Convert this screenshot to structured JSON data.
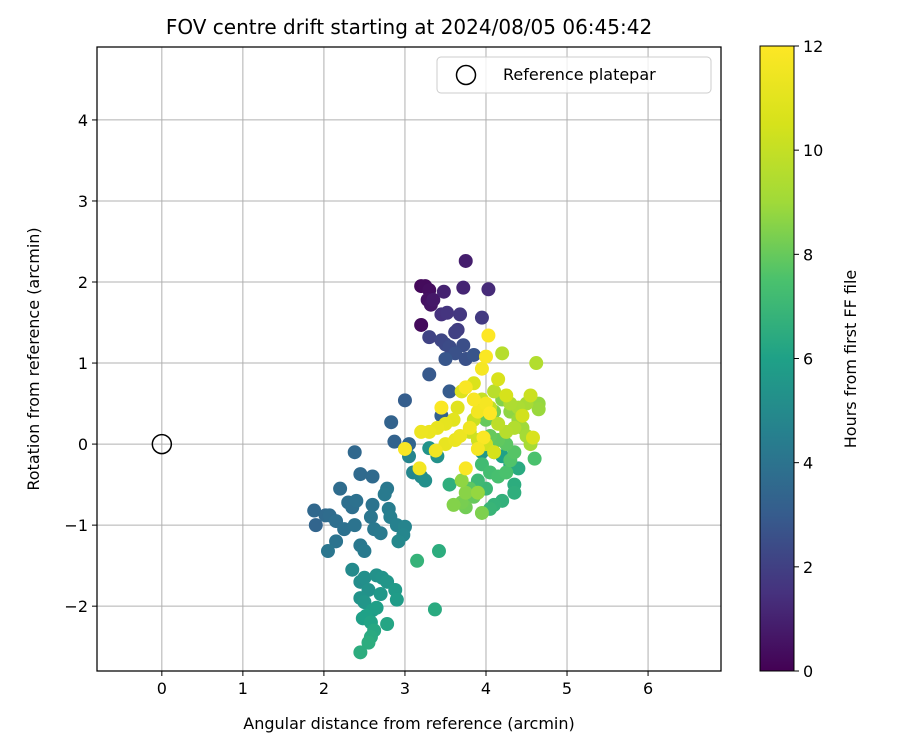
{
  "chart_data": {
    "type": "scatter",
    "title": "FOV centre drift starting at 2024/08/05 06:45:42",
    "xlabel": "Angular distance from reference (arcmin)",
    "ylabel": "Rotation from reference (arcmin)",
    "xlim": [
      -0.8,
      6.9
    ],
    "ylim": [
      -2.8,
      4.9
    ],
    "xticks": [
      0,
      1,
      2,
      3,
      4,
      5,
      6
    ],
    "yticks": [
      -2,
      -1,
      0,
      1,
      2,
      3,
      4
    ],
    "x_tick_labels": [
      "0",
      "1",
      "2",
      "3",
      "4",
      "5",
      "6"
    ],
    "y_tick_labels": [
      "−2",
      "−1",
      "0",
      "1",
      "2",
      "3",
      "4"
    ],
    "grid": true,
    "legend": {
      "placement": "top-right",
      "entries": [
        "Reference platepar"
      ]
    },
    "colorbar": {
      "label": "Hours from first FF file",
      "range": [
        0,
        12
      ],
      "ticks": [
        0,
        2,
        4,
        6,
        8,
        10,
        12
      ],
      "tick_labels": [
        "0",
        "2",
        "4",
        "6",
        "8",
        "10",
        "12"
      ],
      "colormap": "viridis"
    },
    "reference_point": {
      "x": 0,
      "y": 0
    },
    "points": [
      {
        "x": 3.2,
        "y": 1.95,
        "h": 0.2
      },
      {
        "x": 3.25,
        "y": 1.95,
        "h": 0.3
      },
      {
        "x": 3.3,
        "y": 1.9,
        "h": 0.4
      },
      {
        "x": 3.28,
        "y": 1.78,
        "h": 0.5
      },
      {
        "x": 3.32,
        "y": 1.72,
        "h": 0.6
      },
      {
        "x": 3.35,
        "y": 1.78,
        "h": 0.7
      },
      {
        "x": 3.2,
        "y": 1.47,
        "h": 0.3
      },
      {
        "x": 3.75,
        "y": 2.26,
        "h": 0.9
      },
      {
        "x": 3.48,
        "y": 1.88,
        "h": 1.0
      },
      {
        "x": 3.72,
        "y": 1.93,
        "h": 1.1
      },
      {
        "x": 4.03,
        "y": 1.91,
        "h": 1.3
      },
      {
        "x": 3.45,
        "y": 1.6,
        "h": 1.5
      },
      {
        "x": 3.52,
        "y": 1.62,
        "h": 1.6
      },
      {
        "x": 3.68,
        "y": 1.6,
        "h": 1.7
      },
      {
        "x": 3.95,
        "y": 1.56,
        "h": 1.8
      },
      {
        "x": 3.65,
        "y": 1.41,
        "h": 1.9
      },
      {
        "x": 3.62,
        "y": 1.38,
        "h": 2.0
      },
      {
        "x": 3.3,
        "y": 1.32,
        "h": 2.1
      },
      {
        "x": 3.45,
        "y": 1.28,
        "h": 2.2
      },
      {
        "x": 3.5,
        "y": 1.23,
        "h": 2.3
      },
      {
        "x": 3.55,
        "y": 1.2,
        "h": 2.4
      },
      {
        "x": 3.72,
        "y": 1.22,
        "h": 2.5
      },
      {
        "x": 3.62,
        "y": 1.12,
        "h": 2.6
      },
      {
        "x": 3.75,
        "y": 1.05,
        "h": 2.6
      },
      {
        "x": 3.85,
        "y": 1.1,
        "h": 2.7
      },
      {
        "x": 3.5,
        "y": 1.05,
        "h": 2.8
      },
      {
        "x": 3.3,
        "y": 0.86,
        "h": 2.9
      },
      {
        "x": 3.55,
        "y": 0.65,
        "h": 3.0
      },
      {
        "x": 3.0,
        "y": 0.54,
        "h": 3.1
      },
      {
        "x": 3.45,
        "y": 0.35,
        "h": 3.2
      },
      {
        "x": 2.83,
        "y": 0.27,
        "h": 3.3
      },
      {
        "x": 2.87,
        "y": 0.03,
        "h": 3.3
      },
      {
        "x": 3.05,
        "y": 0.0,
        "h": 3.4
      },
      {
        "x": 2.38,
        "y": -0.1,
        "h": 3.5
      },
      {
        "x": 2.45,
        "y": -0.37,
        "h": 3.6
      },
      {
        "x": 2.6,
        "y": -0.4,
        "h": 3.6
      },
      {
        "x": 1.88,
        "y": -0.82,
        "h": 3.5
      },
      {
        "x": 1.9,
        "y": -1.0,
        "h": 3.4
      },
      {
        "x": 2.02,
        "y": -0.88,
        "h": 3.6
      },
      {
        "x": 2.07,
        "y": -0.88,
        "h": 3.7
      },
      {
        "x": 2.2,
        "y": -0.55,
        "h": 3.7
      },
      {
        "x": 2.3,
        "y": -0.72,
        "h": 3.8
      },
      {
        "x": 2.35,
        "y": -0.78,
        "h": 3.8
      },
      {
        "x": 2.4,
        "y": -0.7,
        "h": 3.9
      },
      {
        "x": 2.15,
        "y": -0.95,
        "h": 3.8
      },
      {
        "x": 2.25,
        "y": -1.05,
        "h": 3.9
      },
      {
        "x": 2.15,
        "y": -1.2,
        "h": 4.0
      },
      {
        "x": 2.05,
        "y": -1.32,
        "h": 4.1
      },
      {
        "x": 2.38,
        "y": -1.0,
        "h": 4.0
      },
      {
        "x": 2.45,
        "y": -1.25,
        "h": 4.2
      },
      {
        "x": 2.5,
        "y": -1.32,
        "h": 4.3
      },
      {
        "x": 2.6,
        "y": -0.75,
        "h": 4.0
      },
      {
        "x": 2.58,
        "y": -0.9,
        "h": 4.1
      },
      {
        "x": 2.62,
        "y": -1.05,
        "h": 4.2
      },
      {
        "x": 2.7,
        "y": -1.1,
        "h": 4.3
      },
      {
        "x": 2.78,
        "y": -0.55,
        "h": 4.2
      },
      {
        "x": 2.75,
        "y": -0.62,
        "h": 4.3
      },
      {
        "x": 2.8,
        "y": -0.8,
        "h": 4.4
      },
      {
        "x": 2.82,
        "y": -0.9,
        "h": 4.5
      },
      {
        "x": 2.9,
        "y": -1.0,
        "h": 4.6
      },
      {
        "x": 3.0,
        "y": -1.02,
        "h": 4.7
      },
      {
        "x": 2.98,
        "y": -1.12,
        "h": 4.8
      },
      {
        "x": 2.92,
        "y": -1.2,
        "h": 4.9
      },
      {
        "x": 3.05,
        "y": -0.15,
        "h": 4.7
      },
      {
        "x": 3.1,
        "y": -0.35,
        "h": 4.8
      },
      {
        "x": 3.2,
        "y": -0.4,
        "h": 5.0
      },
      {
        "x": 3.25,
        "y": -0.45,
        "h": 5.2
      },
      {
        "x": 3.4,
        "y": -0.15,
        "h": 5.3
      },
      {
        "x": 3.3,
        "y": -0.05,
        "h": 5.4
      },
      {
        "x": 2.35,
        "y": -1.55,
        "h": 5.0
      },
      {
        "x": 2.45,
        "y": -1.7,
        "h": 5.1
      },
      {
        "x": 2.5,
        "y": -1.65,
        "h": 5.2
      },
      {
        "x": 2.55,
        "y": -1.8,
        "h": 5.3
      },
      {
        "x": 2.45,
        "y": -1.9,
        "h": 5.4
      },
      {
        "x": 2.5,
        "y": -1.95,
        "h": 5.5
      },
      {
        "x": 2.65,
        "y": -1.62,
        "h": 5.3
      },
      {
        "x": 2.72,
        "y": -1.65,
        "h": 5.4
      },
      {
        "x": 2.78,
        "y": -1.7,
        "h": 5.5
      },
      {
        "x": 2.7,
        "y": -1.85,
        "h": 5.6
      },
      {
        "x": 2.88,
        "y": -1.8,
        "h": 5.7
      },
      {
        "x": 2.9,
        "y": -1.92,
        "h": 5.8
      },
      {
        "x": 2.6,
        "y": -2.05,
        "h": 5.8
      },
      {
        "x": 2.65,
        "y": -2.02,
        "h": 5.9
      },
      {
        "x": 2.48,
        "y": -2.15,
        "h": 5.9
      },
      {
        "x": 2.52,
        "y": -2.12,
        "h": 6.0
      },
      {
        "x": 2.58,
        "y": -2.2,
        "h": 6.1
      },
      {
        "x": 2.78,
        "y": -2.22,
        "h": 6.2
      },
      {
        "x": 2.62,
        "y": -2.3,
        "h": 6.3
      },
      {
        "x": 2.58,
        "y": -2.38,
        "h": 6.4
      },
      {
        "x": 2.55,
        "y": -2.45,
        "h": 6.5
      },
      {
        "x": 2.45,
        "y": -2.57,
        "h": 6.5
      },
      {
        "x": 3.37,
        "y": -2.04,
        "h": 6.4
      },
      {
        "x": 3.42,
        "y": -1.32,
        "h": 6.5
      },
      {
        "x": 3.15,
        "y": -1.44,
        "h": 6.8
      },
      {
        "x": 3.55,
        "y": -0.5,
        "h": 6.6
      },
      {
        "x": 3.95,
        "y": -0.1,
        "h": 5.5
      },
      {
        "x": 4.0,
        "y": -0.05,
        "h": 5.6
      },
      {
        "x": 4.1,
        "y": -0.1,
        "h": 5.8
      },
      {
        "x": 4.2,
        "y": -0.15,
        "h": 6.0
      },
      {
        "x": 4.3,
        "y": -0.25,
        "h": 6.2
      },
      {
        "x": 4.4,
        "y": -0.3,
        "h": 6.4
      },
      {
        "x": 4.35,
        "y": -0.5,
        "h": 6.5
      },
      {
        "x": 4.35,
        "y": -0.6,
        "h": 6.6
      },
      {
        "x": 4.2,
        "y": -0.7,
        "h": 6.7
      },
      {
        "x": 4.1,
        "y": -0.75,
        "h": 6.8
      },
      {
        "x": 4.05,
        "y": -0.8,
        "h": 6.9
      },
      {
        "x": 4.0,
        "y": -0.55,
        "h": 7.0
      },
      {
        "x": 3.9,
        "y": -0.45,
        "h": 7.1
      },
      {
        "x": 3.95,
        "y": -0.25,
        "h": 7.2
      },
      {
        "x": 4.05,
        "y": -0.35,
        "h": 7.3
      },
      {
        "x": 4.15,
        "y": -0.4,
        "h": 7.4
      },
      {
        "x": 4.25,
        "y": -0.35,
        "h": 7.5
      },
      {
        "x": 4.3,
        "y": -0.2,
        "h": 7.6
      },
      {
        "x": 4.35,
        "y": -0.1,
        "h": 7.7
      },
      {
        "x": 4.25,
        "y": 0.0,
        "h": 7.8
      },
      {
        "x": 4.15,
        "y": 0.05,
        "h": 7.9
      },
      {
        "x": 4.05,
        "y": 0.1,
        "h": 8.0
      },
      {
        "x": 4.6,
        "y": -0.18,
        "h": 7.5
      },
      {
        "x": 3.8,
        "y": -0.55,
        "h": 7.8
      },
      {
        "x": 3.85,
        "y": -0.65,
        "h": 8.0
      },
      {
        "x": 3.75,
        "y": -0.78,
        "h": 8.2
      },
      {
        "x": 3.7,
        "y": -0.72,
        "h": 8.3
      },
      {
        "x": 3.6,
        "y": -0.75,
        "h": 8.5
      },
      {
        "x": 3.75,
        "y": -0.6,
        "h": 8.6
      },
      {
        "x": 3.7,
        "y": -0.45,
        "h": 8.7
      },
      {
        "x": 3.95,
        "y": -0.85,
        "h": 8.4
      },
      {
        "x": 3.9,
        "y": -0.6,
        "h": 8.8
      },
      {
        "x": 4.0,
        "y": 0.3,
        "h": 8.0
      },
      {
        "x": 4.1,
        "y": 0.4,
        "h": 8.3
      },
      {
        "x": 4.2,
        "y": 0.55,
        "h": 8.5
      },
      {
        "x": 4.3,
        "y": 0.4,
        "h": 8.7
      },
      {
        "x": 4.4,
        "y": 0.3,
        "h": 8.9
      },
      {
        "x": 4.45,
        "y": 0.2,
        "h": 9.0
      },
      {
        "x": 4.5,
        "y": 0.1,
        "h": 9.1
      },
      {
        "x": 4.55,
        "y": 0.0,
        "h": 9.2
      },
      {
        "x": 4.65,
        "y": 0.5,
        "h": 8.8
      },
      {
        "x": 4.65,
        "y": 0.43,
        "h": 8.9
      },
      {
        "x": 4.5,
        "y": 0.5,
        "h": 9.2
      },
      {
        "x": 4.4,
        "y": 0.45,
        "h": 9.3
      },
      {
        "x": 4.3,
        "y": 0.5,
        "h": 9.4
      },
      {
        "x": 4.62,
        "y": 1.0,
        "h": 9.5
      },
      {
        "x": 4.2,
        "y": 1.12,
        "h": 9.6
      },
      {
        "x": 4.1,
        "y": 0.65,
        "h": 9.7
      },
      {
        "x": 4.35,
        "y": 0.2,
        "h": 9.5
      },
      {
        "x": 4.25,
        "y": 0.15,
        "h": 9.6
      },
      {
        "x": 4.15,
        "y": 0.25,
        "h": 9.8
      },
      {
        "x": 4.05,
        "y": 0.45,
        "h": 9.9
      },
      {
        "x": 3.95,
        "y": 0.55,
        "h": 10.0
      },
      {
        "x": 3.85,
        "y": 0.3,
        "h": 10.1
      },
      {
        "x": 3.8,
        "y": 0.15,
        "h": 10.2
      },
      {
        "x": 3.9,
        "y": 0.05,
        "h": 10.3
      },
      {
        "x": 4.0,
        "y": 0.0,
        "h": 10.4
      },
      {
        "x": 4.1,
        "y": -0.1,
        "h": 10.5
      },
      {
        "x": 4.55,
        "y": 0.6,
        "h": 10.2
      },
      {
        "x": 4.45,
        "y": 0.35,
        "h": 10.4
      },
      {
        "x": 4.58,
        "y": 0.08,
        "h": 10.6
      },
      {
        "x": 4.25,
        "y": 0.6,
        "h": 10.5
      },
      {
        "x": 4.15,
        "y": 0.8,
        "h": 10.6
      },
      {
        "x": 3.85,
        "y": 0.75,
        "h": 10.7
      },
      {
        "x": 3.7,
        "y": 0.65,
        "h": 10.8
      },
      {
        "x": 3.65,
        "y": 0.45,
        "h": 10.9
      },
      {
        "x": 3.6,
        "y": 0.3,
        "h": 11.0
      },
      {
        "x": 3.5,
        "y": 0.25,
        "h": 11.1
      },
      {
        "x": 3.4,
        "y": 0.2,
        "h": 11.2
      },
      {
        "x": 3.3,
        "y": 0.15,
        "h": 11.3
      },
      {
        "x": 3.2,
        "y": 0.15,
        "h": 11.4
      },
      {
        "x": 3.5,
        "y": 0.0,
        "h": 11.2
      },
      {
        "x": 3.62,
        "y": 0.05,
        "h": 11.3
      },
      {
        "x": 3.68,
        "y": 0.1,
        "h": 11.4
      },
      {
        "x": 3.8,
        "y": 0.2,
        "h": 11.5
      },
      {
        "x": 3.9,
        "y": 0.4,
        "h": 11.6
      },
      {
        "x": 4.0,
        "y": 0.5,
        "h": 11.7
      },
      {
        "x": 3.75,
        "y": 0.7,
        "h": 11.8
      },
      {
        "x": 3.45,
        "y": 0.45,
        "h": 11.9
      },
      {
        "x": 3.38,
        "y": -0.08,
        "h": 11.5
      },
      {
        "x": 3.18,
        "y": -0.3,
        "h": 11.6
      },
      {
        "x": 3.0,
        "y": -0.06,
        "h": 11.8
      },
      {
        "x": 3.75,
        "y": -0.3,
        "h": 11.9
      },
      {
        "x": 3.95,
        "y": 0.93,
        "h": 11.7
      },
      {
        "x": 4.0,
        "y": 1.08,
        "h": 11.9
      },
      {
        "x": 4.03,
        "y": 1.34,
        "h": 12.0
      },
      {
        "x": 3.85,
        "y": 0.55,
        "h": 11.8
      },
      {
        "x": 4.05,
        "y": 0.38,
        "h": 12.0
      },
      {
        "x": 3.97,
        "y": 0.08,
        "h": 11.9
      },
      {
        "x": 3.9,
        "y": -0.06,
        "h": 11.7
      }
    ]
  }
}
